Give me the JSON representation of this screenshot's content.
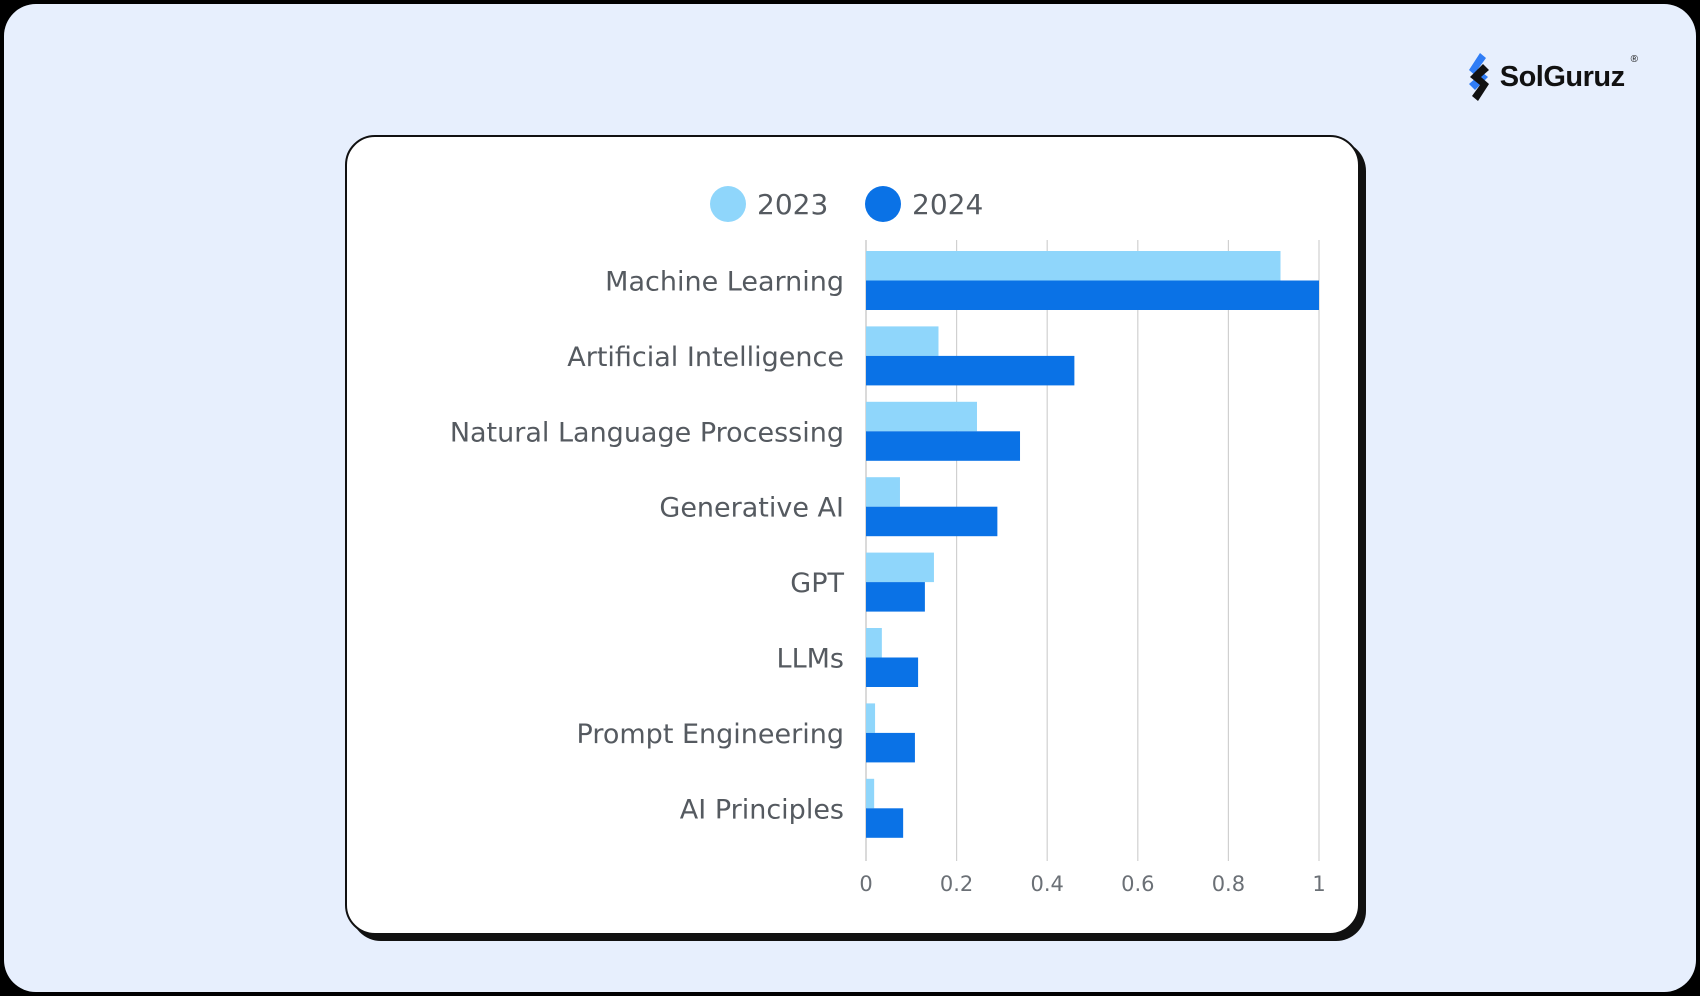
{
  "brand": {
    "name": "SolGuruz",
    "registered_mark": "®",
    "icon": "solguruz-logo-icon"
  },
  "colors": {
    "page_background": "#e7effd",
    "card_background": "#ffffff",
    "series_2023": "#8fd6fb",
    "series_2024": "#0a72e6",
    "gridline": "#d0d0d0",
    "label_text": "#555a60"
  },
  "chart_data": {
    "type": "bar",
    "orientation": "horizontal",
    "categories": [
      "Machine Learning",
      "Artificial Intelligence",
      "Natural Language Processing",
      "Generative AI",
      "GPT",
      "LLMs",
      "Prompt Engineering",
      "AI Principles"
    ],
    "series": [
      {
        "name": "2023",
        "color": "#8fd6fb",
        "values": [
          0.915,
          0.16,
          0.245,
          0.075,
          0.15,
          0.035,
          0.02,
          0.018
        ]
      },
      {
        "name": "2024",
        "color": "#0a72e6",
        "values": [
          1.0,
          0.46,
          0.34,
          0.29,
          0.13,
          0.115,
          0.108,
          0.082
        ]
      }
    ],
    "xlim": [
      0,
      1
    ],
    "xticks": [
      0,
      0.2,
      0.4,
      0.6,
      0.8,
      1
    ],
    "xtick_labels": [
      "0",
      "0.2",
      "0.4",
      "0.6",
      "0.8",
      "1"
    ],
    "grid": true,
    "legend_position": "top-center",
    "title": "",
    "xlabel": "",
    "ylabel": ""
  }
}
